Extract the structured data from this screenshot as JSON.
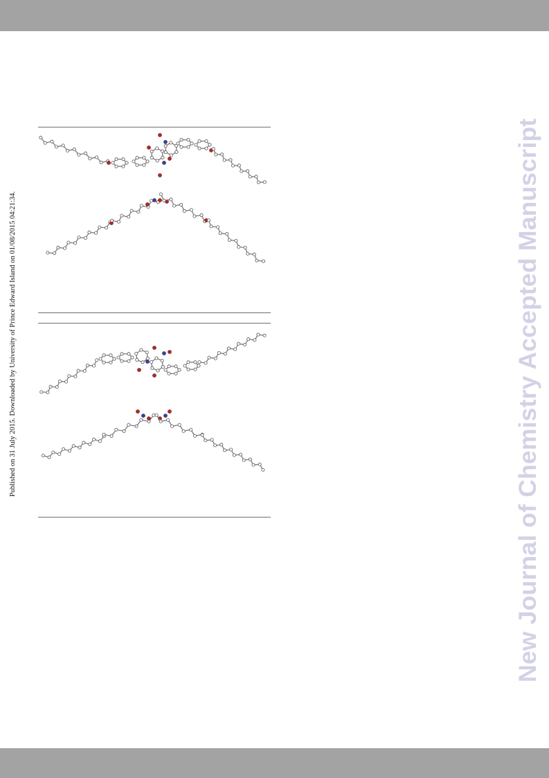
{
  "sidebar_note": "Published on 31 July 2015. Downloaded by University of Prince Edward Island on 01/08/2015 04:21:34.",
  "watermark": "New Journal of Chemistry Accepted Manuscript",
  "colors": {
    "header_bar": "#a3a3a3",
    "watermark": "#d2d2e6",
    "atom_carbon": "#ffffff",
    "atom_oxygen": "#cc1b1b",
    "atom_nitrogen": "#3a3ab0",
    "bond": "#707070"
  }
}
